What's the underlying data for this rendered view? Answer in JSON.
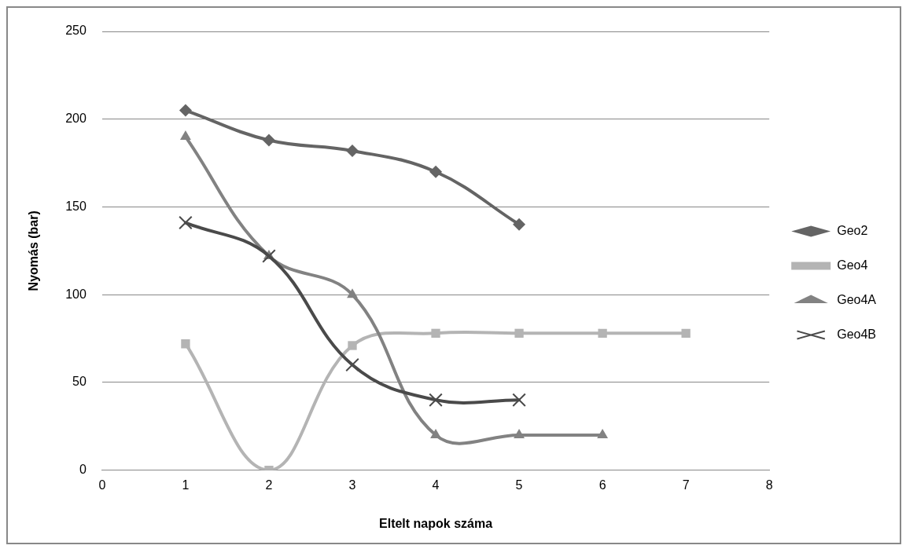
{
  "chart_data": {
    "type": "line",
    "xlabel": "Eltelt napok száma",
    "ylabel": "Nyomás (bar)",
    "xlim": [
      0,
      8
    ],
    "xticks": [
      0,
      1,
      2,
      3,
      4,
      5,
      6,
      7,
      8
    ],
    "ylim": [
      0,
      250
    ],
    "yticks": [
      0,
      50,
      100,
      150,
      200,
      250
    ],
    "grid": "y",
    "legend": "right",
    "series": [
      {
        "name": "Geo2",
        "color": "#646464",
        "marker": "diamond",
        "x": [
          1,
          2,
          3,
          4,
          5
        ],
        "values": [
          205,
          188,
          182,
          170,
          140
        ]
      },
      {
        "name": "Geo4",
        "color": "#b4b4b4",
        "marker": "square",
        "x": [
          1,
          2,
          3,
          4,
          5,
          6,
          7
        ],
        "values": [
          72,
          0,
          71,
          78,
          78,
          78,
          78
        ]
      },
      {
        "name": "Geo4A",
        "color": "#828282",
        "marker": "triangle",
        "x": [
          1,
          2,
          3,
          4,
          5,
          6
        ],
        "values": [
          190,
          122,
          100,
          20,
          20,
          20
        ]
      },
      {
        "name": "Geo4B",
        "color": "#4a4a4a",
        "marker": "cross",
        "x": [
          1,
          2,
          3,
          4,
          5
        ],
        "values": [
          141,
          122,
          60,
          40,
          40
        ]
      }
    ]
  }
}
